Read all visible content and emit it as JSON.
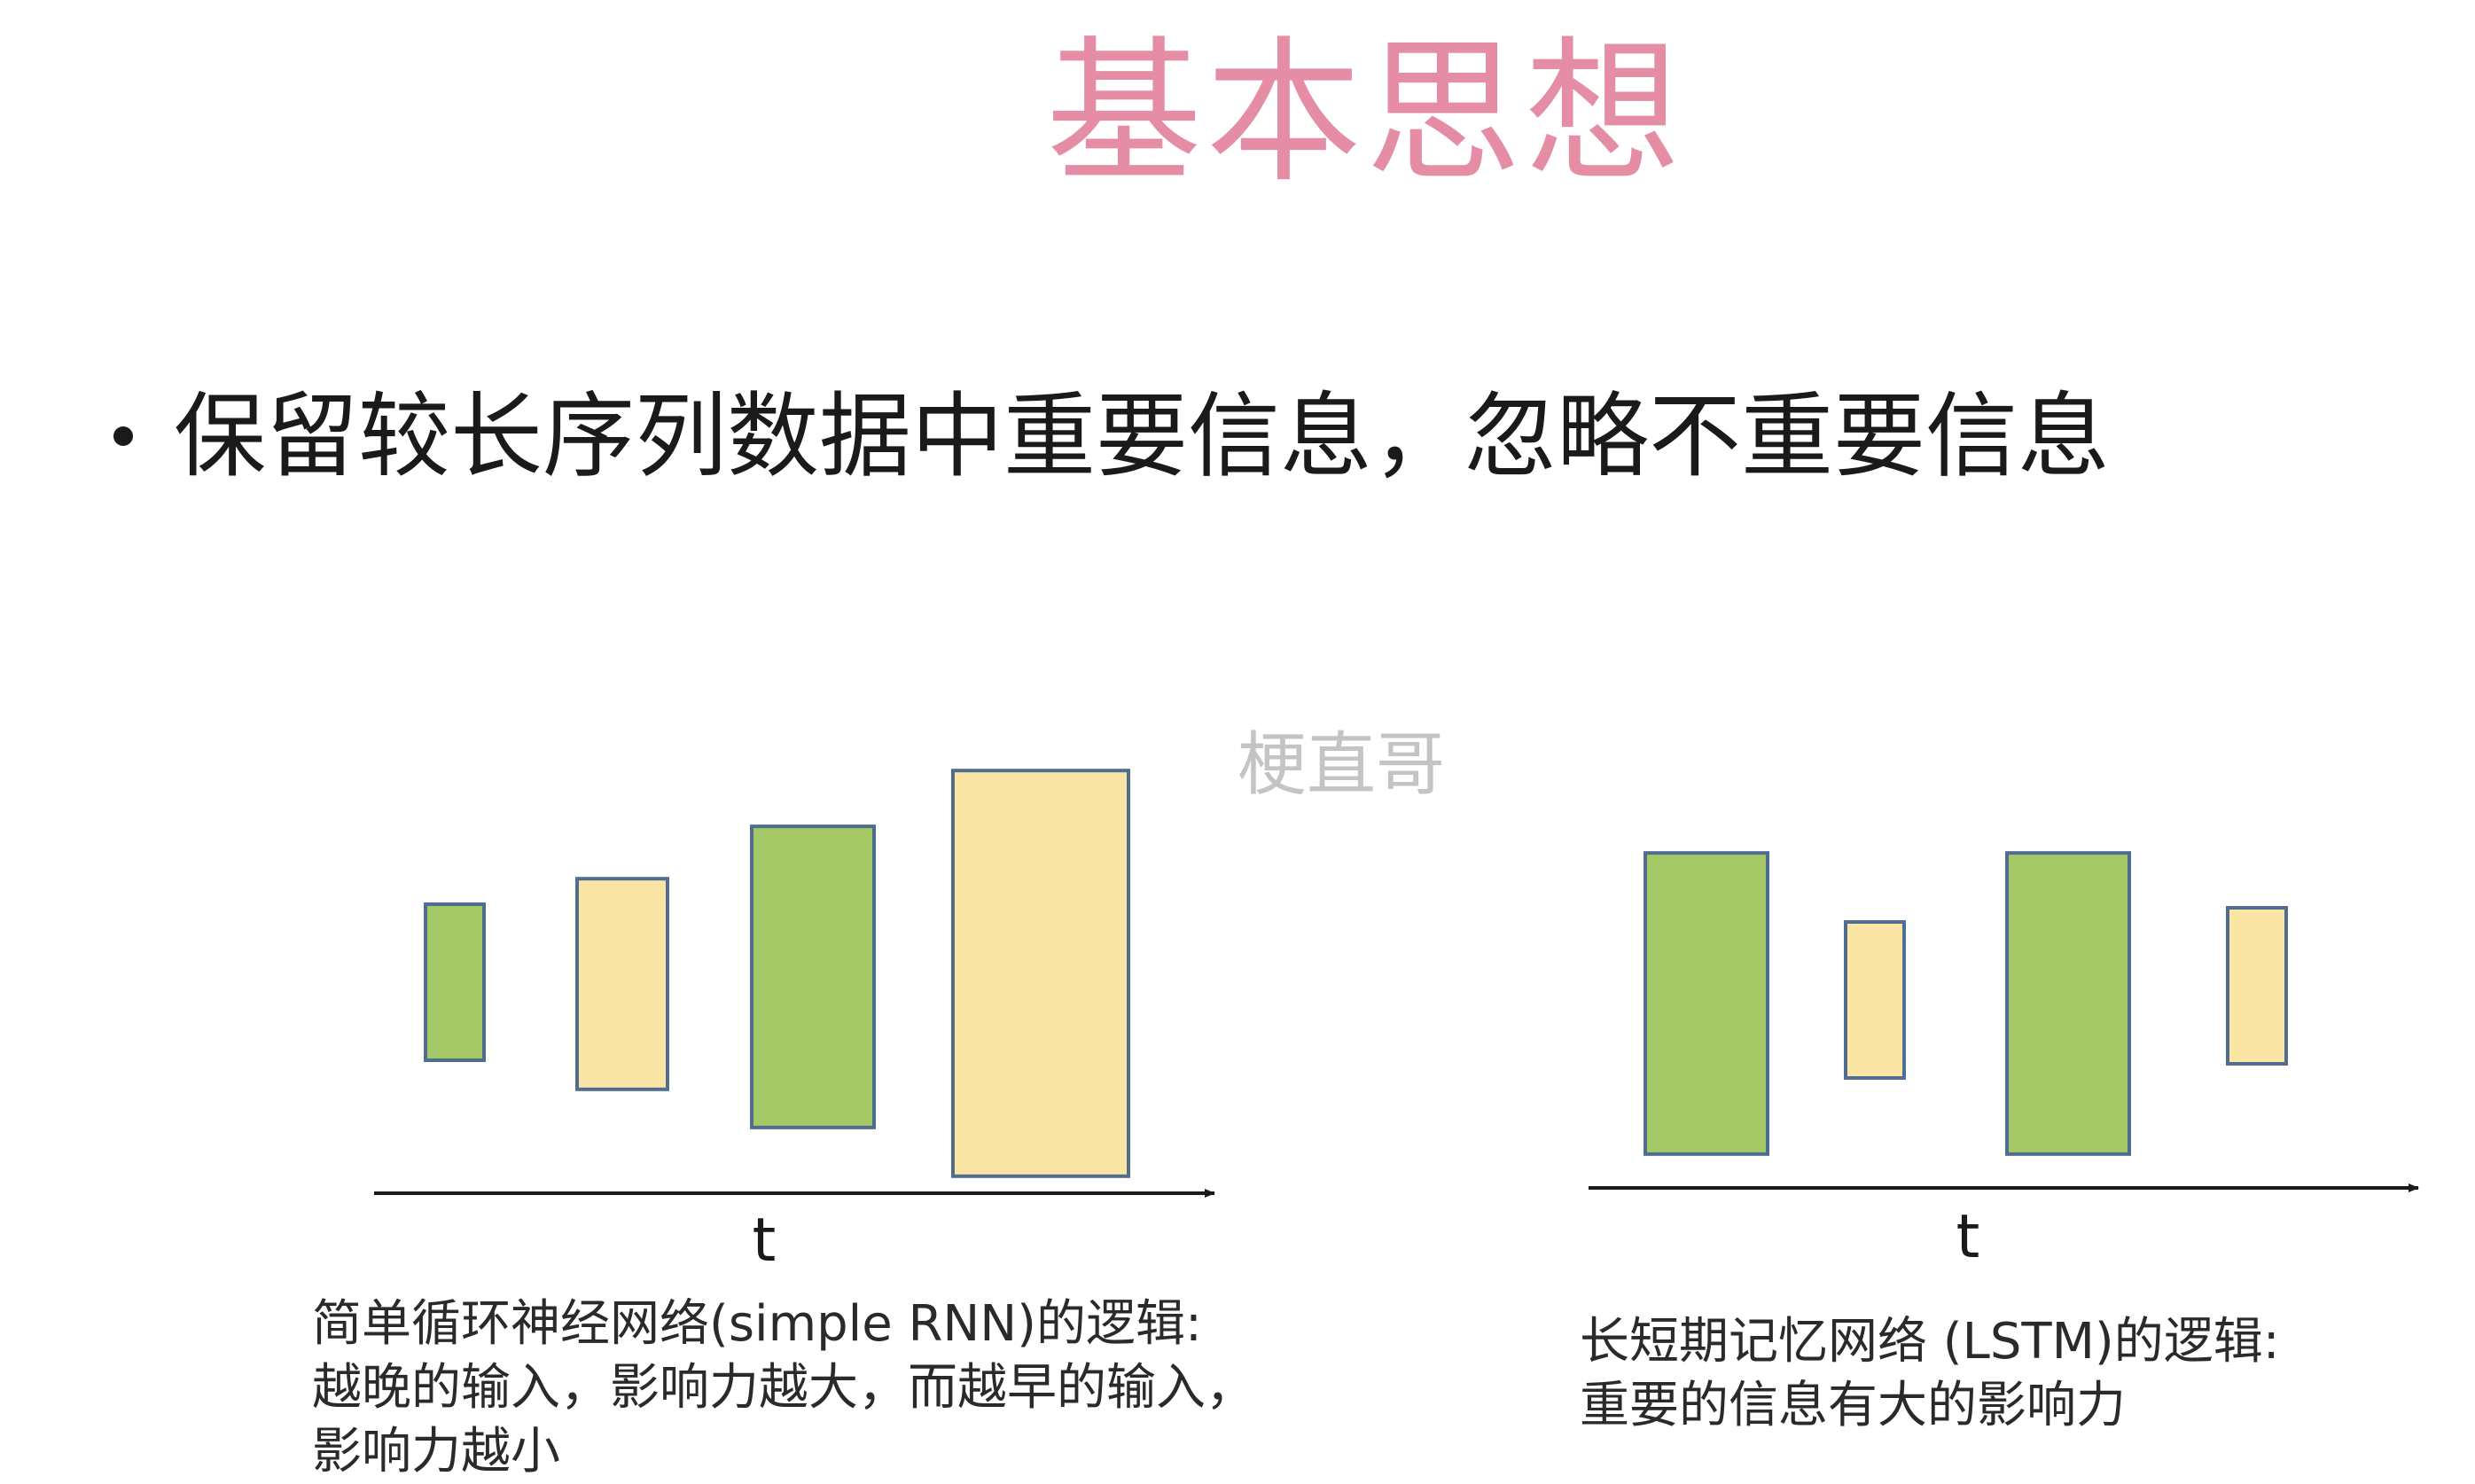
{
  "title": "基本思想",
  "bullet": "保留较长序列数据中重要信息，忽略不重要信息",
  "watermark": "梗直哥",
  "colors": {
    "title": "#e58da5",
    "green_bar": "#a5c866",
    "yellow_bar": "#fae5a4",
    "bar_stroke": "#4f6e8f"
  },
  "chart_data": [
    {
      "type": "bar",
      "name": "simple RNN",
      "xlabel": "t",
      "bars": [
        {
          "color": "green",
          "value": 1.0
        },
        {
          "color": "yellow",
          "value": 1.35
        },
        {
          "color": "green",
          "value": 1.93
        },
        {
          "color": "yellow",
          "value": 2.6
        }
      ],
      "caption_lines": [
        "简单循环神经网络(simple RNN)的逻辑:",
        "越晚的输入，影响力越大，而越早的输入，",
        "影响力越小"
      ]
    },
    {
      "type": "bar",
      "name": "LSTM",
      "xlabel": "t",
      "bars": [
        {
          "color": "green",
          "value": 1.93
        },
        {
          "color": "yellow",
          "value": 1.0
        },
        {
          "color": "green",
          "value": 1.93
        },
        {
          "color": "yellow",
          "value": 1.0
        }
      ],
      "caption_lines": [
        "长短期记忆网络 (LSTM)的逻辑:",
        "重要的信息有大的影响力"
      ]
    }
  ]
}
